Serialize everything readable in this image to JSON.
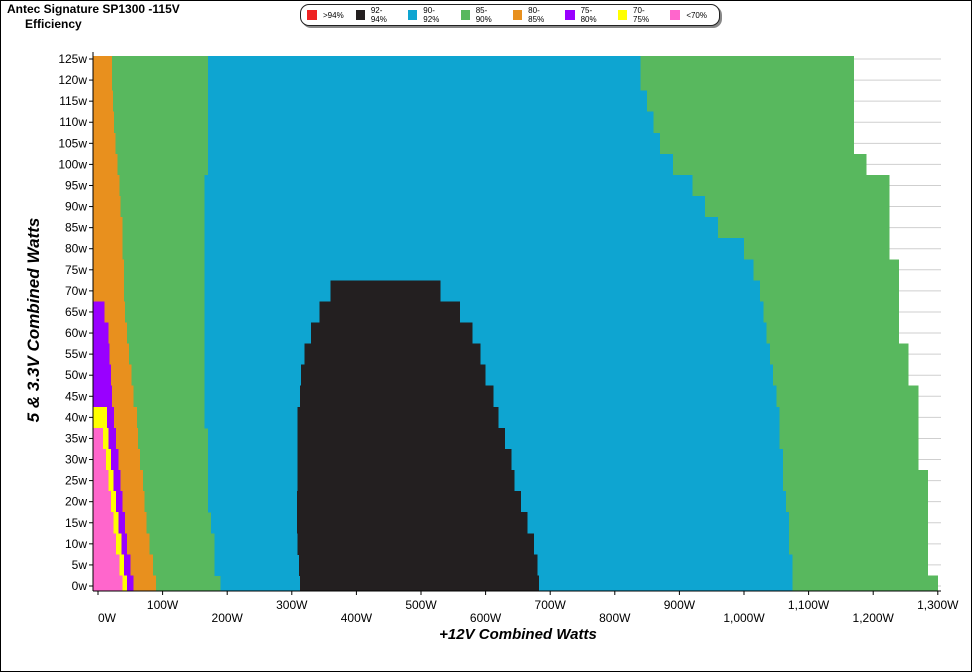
{
  "chart_data": {
    "type": "heatmap",
    "title": "Antec Signature SP1300 -115V",
    "subtitle": "Efficiency",
    "xlabel": "+12V Combined Watts",
    "ylabel": "5 & 3.3V Combined Watts",
    "xlim": [
      0,
      1300
    ],
    "ylim": [
      0,
      125
    ],
    "x_ticks": [
      {
        "value": 0,
        "label": "0W"
      },
      {
        "value": 100,
        "label": "100W"
      },
      {
        "value": 200,
        "label": "200W"
      },
      {
        "value": 300,
        "label": "300W"
      },
      {
        "value": 400,
        "label": "400W"
      },
      {
        "value": 500,
        "label": "500W"
      },
      {
        "value": 600,
        "label": "600W"
      },
      {
        "value": 700,
        "label": "700W"
      },
      {
        "value": 800,
        "label": "800W"
      },
      {
        "value": 900,
        "label": "900W"
      },
      {
        "value": 1000,
        "label": "1,000W"
      },
      {
        "value": 1100,
        "label": "1,100W"
      },
      {
        "value": 1200,
        "label": "1,200W"
      },
      {
        "value": 1300,
        "label": "1,300W"
      }
    ],
    "y_ticks": [
      {
        "value": 0,
        "label": "0w"
      },
      {
        "value": 5,
        "label": "5w"
      },
      {
        "value": 10,
        "label": "10w"
      },
      {
        "value": 15,
        "label": "15w"
      },
      {
        "value": 20,
        "label": "20w"
      },
      {
        "value": 25,
        "label": "25w"
      },
      {
        "value": 30,
        "label": "30w"
      },
      {
        "value": 35,
        "label": "35w"
      },
      {
        "value": 40,
        "label": "40w"
      },
      {
        "value": 45,
        "label": "45w"
      },
      {
        "value": 50,
        "label": "50w"
      },
      {
        "value": 55,
        "label": "55w"
      },
      {
        "value": 60,
        "label": "60w"
      },
      {
        "value": 65,
        "label": "65w"
      },
      {
        "value": 70,
        "label": "70w"
      },
      {
        "value": 75,
        "label": "75w"
      },
      {
        "value": 80,
        "label": "80w"
      },
      {
        "value": 85,
        "label": "85w"
      },
      {
        "value": 90,
        "label": "90w"
      },
      {
        "value": 95,
        "label": "95w"
      },
      {
        "value": 100,
        "label": "100w"
      },
      {
        "value": 105,
        "label": "105w"
      },
      {
        "value": 110,
        "label": "110w"
      },
      {
        "value": 115,
        "label": "115w"
      },
      {
        "value": 120,
        "label": "120w"
      },
      {
        "value": 125,
        "label": "125w"
      }
    ],
    "grid": true,
    "legend": {
      "placement": "top-center",
      "entries": [
        {
          "label": ">94%",
          "color": "#ee2222"
        },
        {
          "label": "92-94%",
          "color": "#231f20"
        },
        {
          "label": "90-92%",
          "color": "#0ea5d1"
        },
        {
          "label": "85-90%",
          "color": "#58b85e"
        },
        {
          "label": "80-85%",
          "color": "#e8901e"
        },
        {
          "label": "75-80%",
          "color": "#9900ff"
        },
        {
          "label": "70-75%",
          "color": "#ffff00"
        },
        {
          "label": "<70%",
          "color": "#ff66cc"
        }
      ]
    },
    "boundary_y_values": [
      0,
      5,
      10,
      15,
      20,
      25,
      30,
      35,
      40,
      45,
      50,
      55,
      60,
      65,
      70,
      75,
      80,
      85,
      90,
      95,
      100,
      105,
      110,
      115,
      120,
      125
    ],
    "regions": [
      {
        "name": "85-90%",
        "color": "#58b85e",
        "x_start": [
          0,
          0,
          0,
          0,
          0,
          0,
          0,
          0,
          0,
          0,
          0,
          0,
          0,
          0,
          0,
          0,
          0,
          0,
          0,
          0,
          0,
          0,
          0,
          0,
          0,
          0
        ],
        "x_end": [
          1300,
          1285,
          1285,
          1285,
          1285,
          1285,
          1270,
          1270,
          1270,
          1270,
          1255,
          1255,
          1240,
          1240,
          1240,
          1240,
          1225,
          1225,
          1225,
          1225,
          1190,
          1170,
          1170,
          1170,
          1170,
          1170
        ]
      },
      {
        "name": "90-92%",
        "color": "#0ea5d1",
        "x_start": [
          190,
          180,
          180,
          175,
          170,
          170,
          170,
          170,
          165,
          165,
          165,
          165,
          165,
          165,
          165,
          165,
          165,
          165,
          165,
          165,
          170,
          170,
          170,
          170,
          170,
          170
        ],
        "x_end": [
          1075,
          1075,
          1070,
          1070,
          1065,
          1060,
          1060,
          1055,
          1055,
          1050,
          1045,
          1040,
          1035,
          1030,
          1025,
          1015,
          1000,
          960,
          940,
          920,
          890,
          870,
          860,
          850,
          840,
          840
        ]
      },
      {
        "name": "92-94%",
        "color": "#231f20",
        "x_start": [
          313,
          311,
          309,
          308,
          308,
          309,
          309,
          309,
          309,
          313,
          314,
          320,
          330,
          343,
          360,
          0,
          0,
          0,
          0,
          0,
          0,
          0,
          0,
          0,
          0,
          0
        ],
        "x_end": [
          683,
          680,
          675,
          665,
          655,
          645,
          640,
          630,
          620,
          612,
          600,
          592,
          580,
          560,
          530,
          0,
          0,
          0,
          0,
          0,
          0,
          0,
          0,
          0,
          0,
          0
        ]
      },
      {
        "name": "80-85%",
        "color": "#e8901e",
        "x_start": [
          0,
          0,
          0,
          0,
          0,
          0,
          0,
          0,
          0,
          0,
          0,
          0,
          0,
          0,
          0,
          0,
          0,
          0,
          0,
          0,
          0,
          0,
          0,
          0,
          0,
          0
        ],
        "x_end": [
          90,
          85,
          80,
          75,
          72,
          70,
          65,
          62,
          60,
          55,
          52,
          48,
          45,
          42,
          40,
          40,
          38,
          38,
          35,
          33,
          30,
          27,
          25,
          23,
          22,
          22
        ]
      },
      {
        "name": "75-80%",
        "color": "#9900ff",
        "x_start": [
          0,
          0,
          0,
          0,
          0,
          0,
          0,
          0,
          0,
          0,
          0,
          0,
          0,
          0,
          0,
          0,
          0,
          0,
          0,
          0,
          0,
          0,
          0,
          0,
          0,
          0
        ],
        "x_end": [
          55,
          50,
          45,
          42,
          38,
          35,
          32,
          28,
          25,
          22,
          20,
          18,
          16,
          10,
          0,
          0,
          0,
          0,
          0,
          0,
          0,
          0,
          0,
          0,
          0,
          0
        ]
      },
      {
        "name": "70-75%",
        "color": "#ffff00",
        "x_start": [
          0,
          0,
          0,
          0,
          0,
          0,
          0,
          0,
          0,
          0,
          0,
          0,
          0,
          0,
          0,
          0,
          0,
          0,
          0,
          0,
          0,
          0,
          0,
          0,
          0,
          0
        ],
        "x_end": [
          45,
          40,
          36,
          32,
          28,
          24,
          20,
          16,
          14,
          0,
          0,
          0,
          0,
          0,
          0,
          0,
          0,
          0,
          0,
          0,
          0,
          0,
          0,
          0,
          0,
          0
        ]
      },
      {
        "name": "<70%",
        "color": "#ff66cc",
        "x_start": [
          0,
          0,
          0,
          0,
          0,
          0,
          0,
          0,
          0,
          0,
          0,
          0,
          0,
          0,
          0,
          0,
          0,
          0,
          0,
          0,
          0,
          0,
          0,
          0,
          0,
          0
        ],
        "x_end": [
          38,
          33,
          28,
          24,
          20,
          16,
          12,
          8,
          0,
          0,
          0,
          0,
          0,
          0,
          0,
          0,
          0,
          0,
          0,
          0,
          0,
          0,
          0,
          0,
          0,
          0
        ]
      }
    ]
  }
}
